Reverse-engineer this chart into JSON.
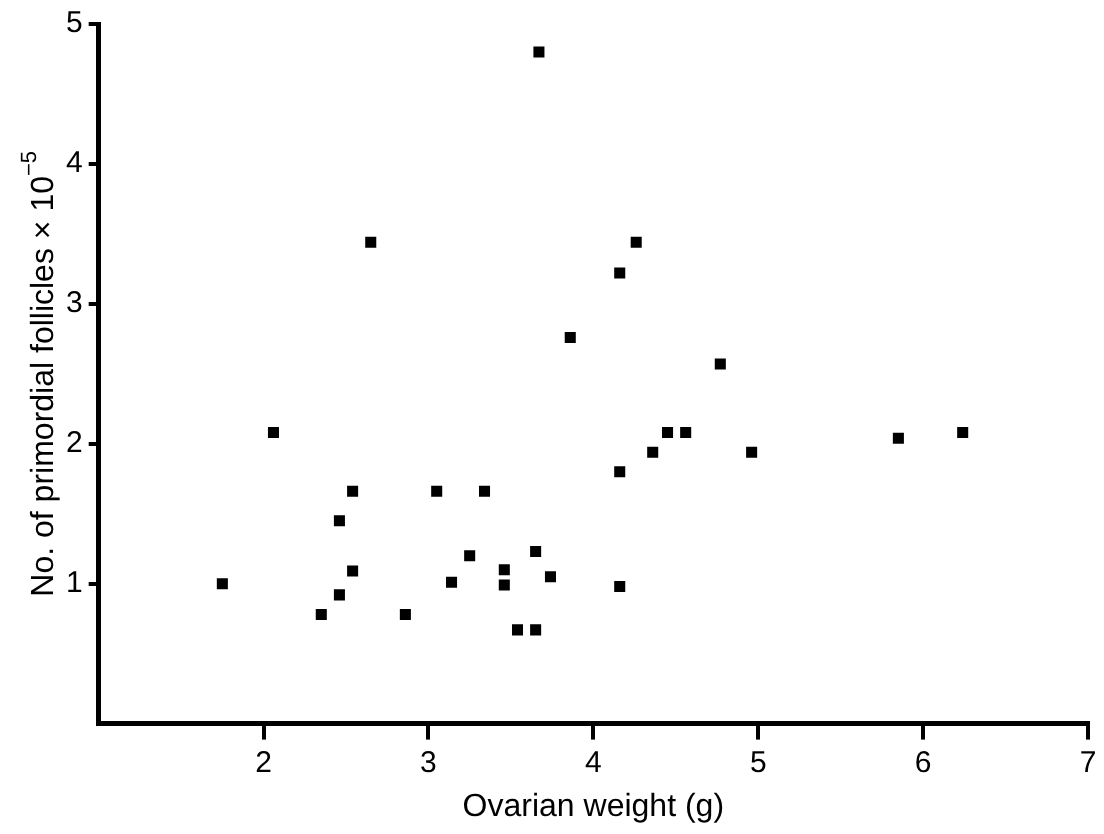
{
  "chart_data": {
    "type": "scatter",
    "xlabel": "Ovarian weight (g)",
    "ylabel": "No. of primordial follicles × 10$^{−5}$",
    "marker": "square",
    "grid": false,
    "legend": false,
    "xlim": [
      1,
      7
    ],
    "xticks": [
      2,
      3,
      4,
      5,
      6,
      7
    ],
    "ylim": [
      0,
      5
    ],
    "yticks": [
      1,
      2,
      3,
      4,
      5
    ],
    "series": [
      {
        "color": "#000000",
        "x": [
          1.75,
          2.06,
          2.65,
          2.35,
          2.46,
          2.46,
          2.54,
          2.54,
          2.86,
          3.05,
          3.14,
          3.25,
          3.34,
          3.46,
          3.46,
          3.54,
          3.65,
          3.67,
          3.65,
          3.74,
          3.86,
          4.16,
          4.26,
          4.77,
          4.45,
          4.56,
          4.36,
          4.16,
          4.16,
          4.96,
          5.85,
          6.24
        ],
        "values": [
          1.0,
          2.08,
          3.44,
          0.78,
          0.92,
          1.45,
          1.66,
          1.09,
          0.78,
          1.66,
          1.01,
          1.2,
          1.66,
          1.1,
          0.99,
          0.67,
          0.67,
          4.8,
          1.23,
          1.05,
          2.76,
          3.22,
          3.44,
          2.57,
          2.08,
          2.08,
          1.94,
          1.8,
          0.98,
          1.94,
          2.04,
          2.08
        ]
      }
    ]
  }
}
